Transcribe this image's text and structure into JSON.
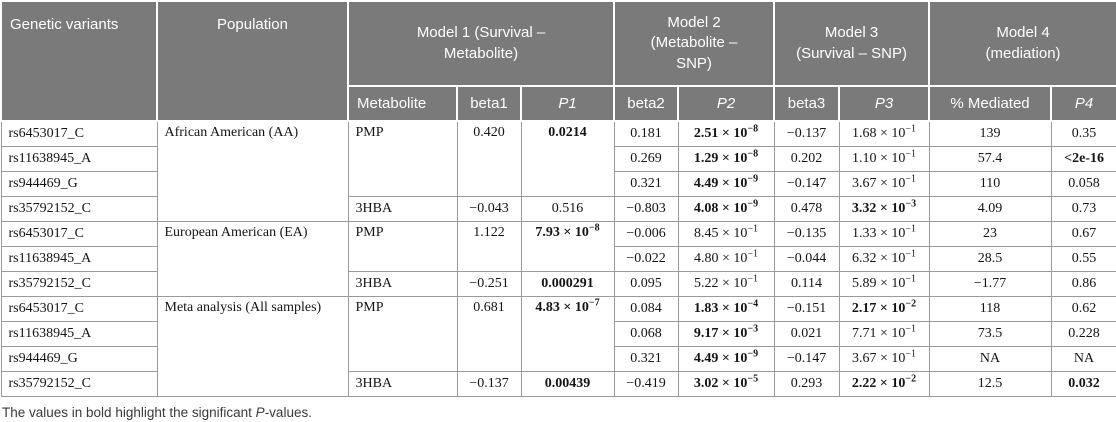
{
  "table": {
    "group_headers": {
      "genetic_variants": "Genetic variants",
      "population": "Population",
      "model1": "Model 1 (Survival –\nMetabolite)",
      "model2": "Model 2\n(Metabolite –\nSNP)",
      "model3": "Model 3\n(Survival – SNP)",
      "model4": "Model 4\n(mediation)"
    },
    "sub_headers": {
      "metabolite": "Metabolite",
      "beta1": "beta1",
      "p1": "P1",
      "beta2": "beta2",
      "p2": "P2",
      "beta3": "beta3",
      "p3": "P3",
      "pct_mediated": "% Mediated",
      "p4": "P4"
    },
    "column_names": [
      "variant",
      "population",
      "metabolite",
      "beta1",
      "p1",
      "beta2",
      "p2",
      "beta3",
      "p3",
      "pct-mediated",
      "p4"
    ],
    "rows": [
      [
        {
          "t": "rs6453017_C",
          "a": "l"
        },
        {
          "t": "African American (AA)",
          "a": "l",
          "rs": 4
        },
        {
          "t": "PMP",
          "a": "l",
          "rs": 3
        },
        {
          "t": "0.420",
          "rs": 3
        },
        {
          "t": "0.0214",
          "rs": 3,
          "b": 1
        },
        {
          "t": "0.181"
        },
        {
          "t": "2.51 × 10^{−8}",
          "b": 1
        },
        {
          "t": "−0.137"
        },
        {
          "t": "1.68 × 10^{−1}"
        },
        {
          "t": "139"
        },
        {
          "t": "0.35"
        }
      ],
      [
        {
          "t": "rs11638945_A",
          "a": "l"
        },
        {
          "t": "0.269"
        },
        {
          "t": "1.29 × 10^{−8}",
          "b": 1
        },
        {
          "t": "0.202"
        },
        {
          "t": "1.10 × 10^{−1}"
        },
        {
          "t": "57.4"
        },
        {
          "t": "<2e-16",
          "b": 1
        }
      ],
      [
        {
          "t": "rs944469_G",
          "a": "l"
        },
        {
          "t": "0.321"
        },
        {
          "t": "4.49 × 10^{−9}",
          "b": 1
        },
        {
          "t": "−0.147"
        },
        {
          "t": "3.67 × 10^{−1}"
        },
        {
          "t": "110"
        },
        {
          "t": "0.058"
        }
      ],
      [
        {
          "t": "rs35792152_C",
          "a": "l"
        },
        {
          "t": "3HBA",
          "a": "l"
        },
        {
          "t": "−0.043"
        },
        {
          "t": "0.516"
        },
        {
          "t": "−0.803"
        },
        {
          "t": "4.08 × 10^{−9}",
          "b": 1
        },
        {
          "t": "0.478"
        },
        {
          "t": "3.32 × 10^{−3}",
          "b": 1
        },
        {
          "t": "4.09"
        },
        {
          "t": "0.73"
        }
      ],
      [
        {
          "t": "rs6453017_C",
          "a": "l"
        },
        {
          "t": "European American (EA)",
          "a": "l",
          "rs": 3
        },
        {
          "t": "PMP",
          "a": "l",
          "rs": 2
        },
        {
          "t": "1.122",
          "rs": 2
        },
        {
          "t": "7.93 × 10^{−8}",
          "rs": 2,
          "b": 1
        },
        {
          "t": "−0.006"
        },
        {
          "t": "8.45 × 10^{−1}"
        },
        {
          "t": "−0.135"
        },
        {
          "t": "1.33 × 10^{−1}"
        },
        {
          "t": "23"
        },
        {
          "t": "0.67"
        }
      ],
      [
        {
          "t": "rs11638945_A",
          "a": "l"
        },
        {
          "t": "−0.022"
        },
        {
          "t": "4.80 × 10^{−1}"
        },
        {
          "t": "−0.044"
        },
        {
          "t": "6.32 × 10^{−1}"
        },
        {
          "t": "28.5"
        },
        {
          "t": "0.55"
        }
      ],
      [
        {
          "t": "rs35792152_C",
          "a": "l"
        },
        {
          "t": "3HBA",
          "a": "l"
        },
        {
          "t": "−0.251"
        },
        {
          "t": "0.000291",
          "b": 1
        },
        {
          "t": "0.095"
        },
        {
          "t": "5.22 × 10^{−1}"
        },
        {
          "t": "0.114"
        },
        {
          "t": "5.89 × 10^{−1}"
        },
        {
          "t": "−1.77"
        },
        {
          "t": "0.86"
        }
      ],
      [
        {
          "t": "rs6453017_C",
          "a": "l"
        },
        {
          "t": "Meta analysis (All samples)",
          "a": "l",
          "rs": 4
        },
        {
          "t": "PMP",
          "a": "l",
          "rs": 3
        },
        {
          "t": "0.681",
          "rs": 3
        },
        {
          "t": "4.83 × 10^{−7}",
          "rs": 3,
          "b": 1
        },
        {
          "t": "0.084"
        },
        {
          "t": "1.83 × 10^{−4}",
          "b": 1
        },
        {
          "t": "−0.151"
        },
        {
          "t": "2.17 × 10^{−2}",
          "b": 1
        },
        {
          "t": "118"
        },
        {
          "t": "0.62"
        }
      ],
      [
        {
          "t": "rs11638945_A",
          "a": "l"
        },
        {
          "t": "0.068"
        },
        {
          "t": "9.17 × 10^{−3}",
          "b": 1
        },
        {
          "t": "0.021"
        },
        {
          "t": "7.71 × 10^{−1}"
        },
        {
          "t": "73.5"
        },
        {
          "t": "0.228"
        }
      ],
      [
        {
          "t": "rs944469_G",
          "a": "l"
        },
        {
          "t": "0.321"
        },
        {
          "t": "4.49 × 10^{−9}",
          "b": 1
        },
        {
          "t": "−0.147"
        },
        {
          "t": "3.67 × 10^{−1}"
        },
        {
          "t": "NA"
        },
        {
          "t": "NA"
        }
      ],
      [
        {
          "t": "rs35792152_C",
          "a": "l"
        },
        {
          "t": "3HBA",
          "a": "l"
        },
        {
          "t": "−0.137"
        },
        {
          "t": "0.00439",
          "b": 1
        },
        {
          "t": "−0.419"
        },
        {
          "t": "3.02 × 10^{−5}",
          "b": 1
        },
        {
          "t": "0.293"
        },
        {
          "t": "2.22 × 10^{−2}",
          "b": 1
        },
        {
          "t": "12.5"
        },
        {
          "t": "0.032",
          "b": 1
        }
      ]
    ]
  },
  "footnote": {
    "prefix": "The values in bold highlight the significant ",
    "italic_p": "P",
    "suffix": "-values."
  },
  "colors": {
    "header_bg": "#7a7a7a",
    "header_text": "#ffffff",
    "body_border": "#9a9a9a",
    "body_text": "#151515"
  }
}
